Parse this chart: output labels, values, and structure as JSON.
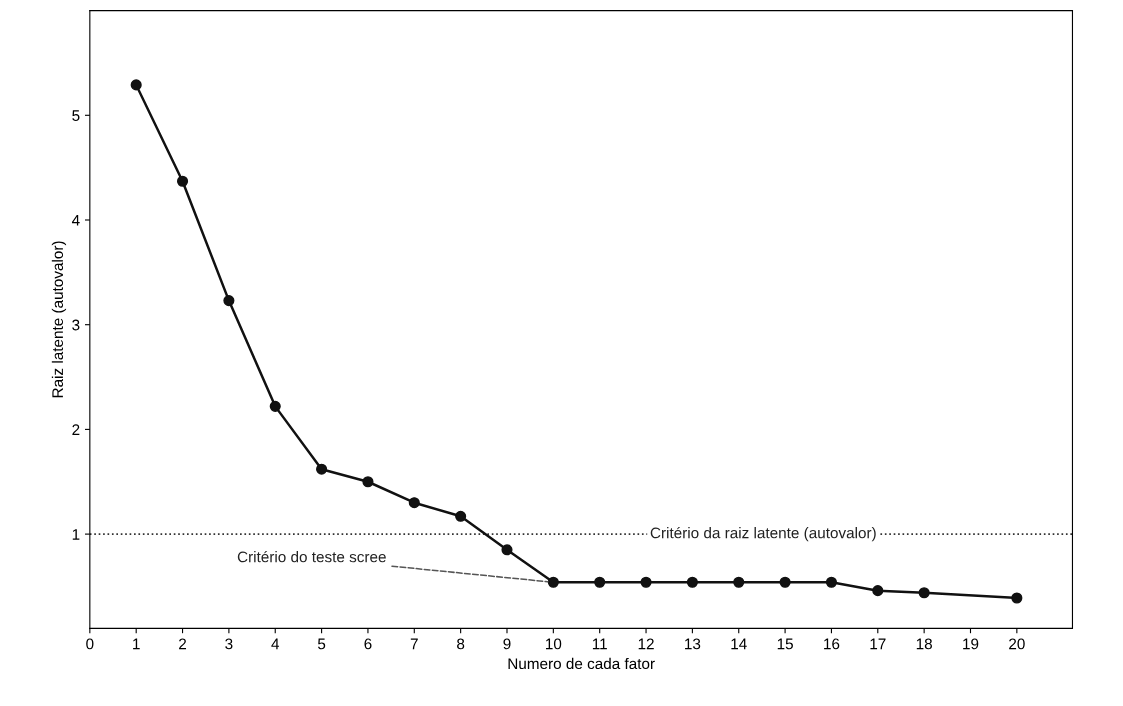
{
  "chart_data": {
    "type": "line",
    "xlabel": "Numero de cada fator",
    "ylabel": "Raiz latente (autovalor)",
    "x": [
      1,
      2,
      3,
      4,
      5,
      6,
      7,
      8,
      9,
      10,
      11,
      12,
      13,
      14,
      15,
      16,
      17,
      18,
      20
    ],
    "series": [
      {
        "color": "#111111",
        "values": [
          5.29,
          4.37,
          3.23,
          2.22,
          1.62,
          1.5,
          1.3,
          1.17,
          0.85,
          0.54,
          0.54,
          0.54,
          0.54,
          0.54,
          0.54,
          0.54,
          0.46,
          0.44,
          0.39
        ]
      }
    ],
    "xlim": [
      0,
      21.2
    ],
    "ylim": [
      0.1,
      6
    ],
    "xticks": [
      0,
      1,
      2,
      3,
      4,
      5,
      6,
      7,
      8,
      9,
      10,
      11,
      12,
      13,
      14,
      15,
      16,
      17,
      18,
      19,
      20
    ],
    "yticks": [
      1,
      2,
      3,
      4,
      5
    ],
    "marker": "circle",
    "line_style": "solid",
    "grid": false,
    "legend": false,
    "ref_lines": [
      {
        "axis": "y",
        "value": 1,
        "label": "Critério da raiz latente (autovalor)",
        "color": "#333333",
        "line_style": "dotted"
      }
    ],
    "annotations": [
      {
        "text": "Critério do teste scree",
        "x": 10,
        "y": 0.54
      }
    ]
  }
}
